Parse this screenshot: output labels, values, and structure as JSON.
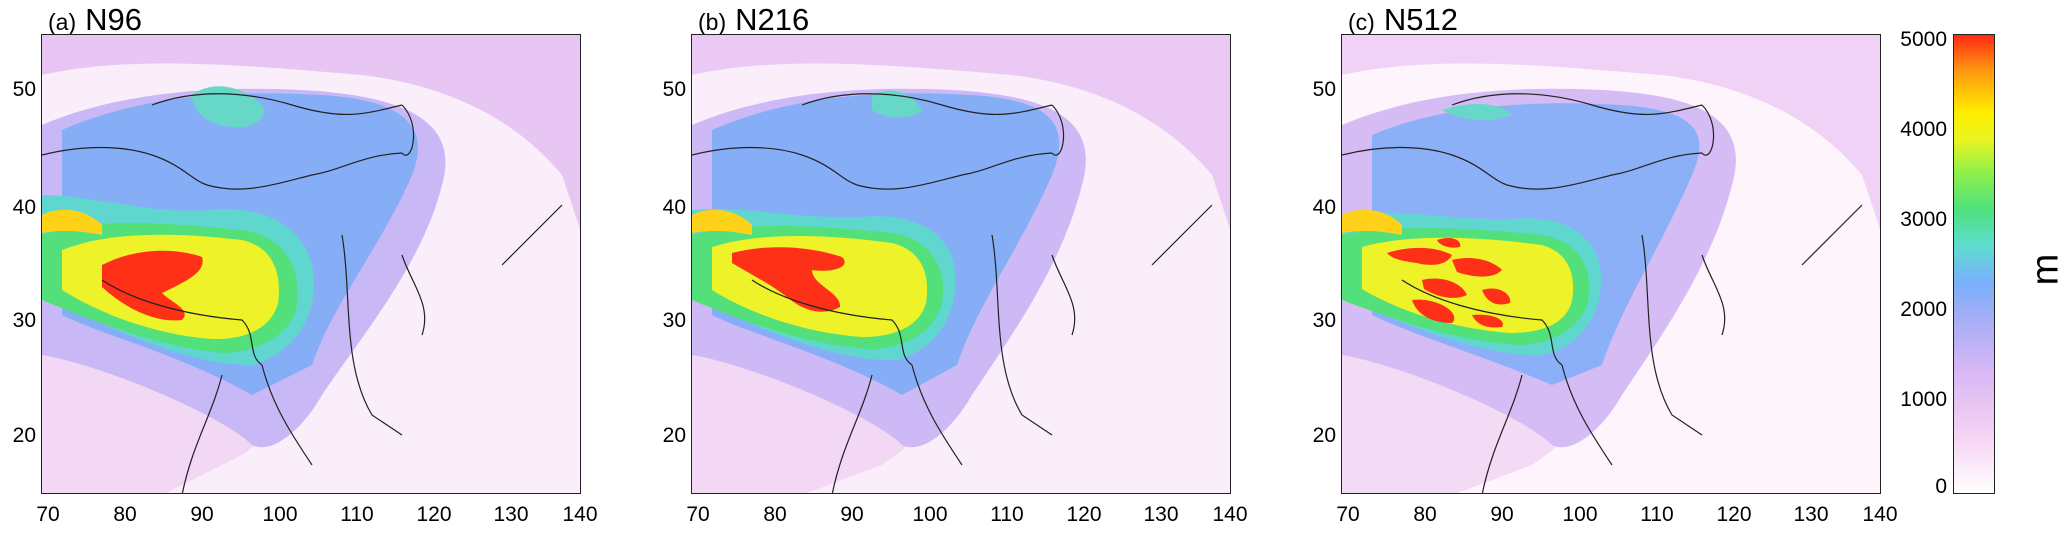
{
  "panels": [
    {
      "tag": "(a)",
      "title": "N96"
    },
    {
      "tag": "(b)",
      "title": "N216"
    },
    {
      "tag": "(c)",
      "title": "N512"
    }
  ],
  "axes": {
    "x_ticks": [
      "70",
      "80",
      "90",
      "100",
      "110",
      "120",
      "130",
      "140"
    ],
    "y_ticks": [
      "50",
      "40",
      "30",
      "20"
    ]
  },
  "colorbar": {
    "ticks": [
      "5000",
      "4000",
      "3000",
      "2000",
      "1000",
      "0"
    ],
    "unit": "m",
    "colors": [
      "#ffffff",
      "#f6d4f4",
      "#d9b8f5",
      "#a6aef5",
      "#78b0fb",
      "#5fdcd0",
      "#4ee27c",
      "#8ff04a",
      "#ffee00",
      "#ff9a10",
      "#ff2a14"
    ]
  }
}
